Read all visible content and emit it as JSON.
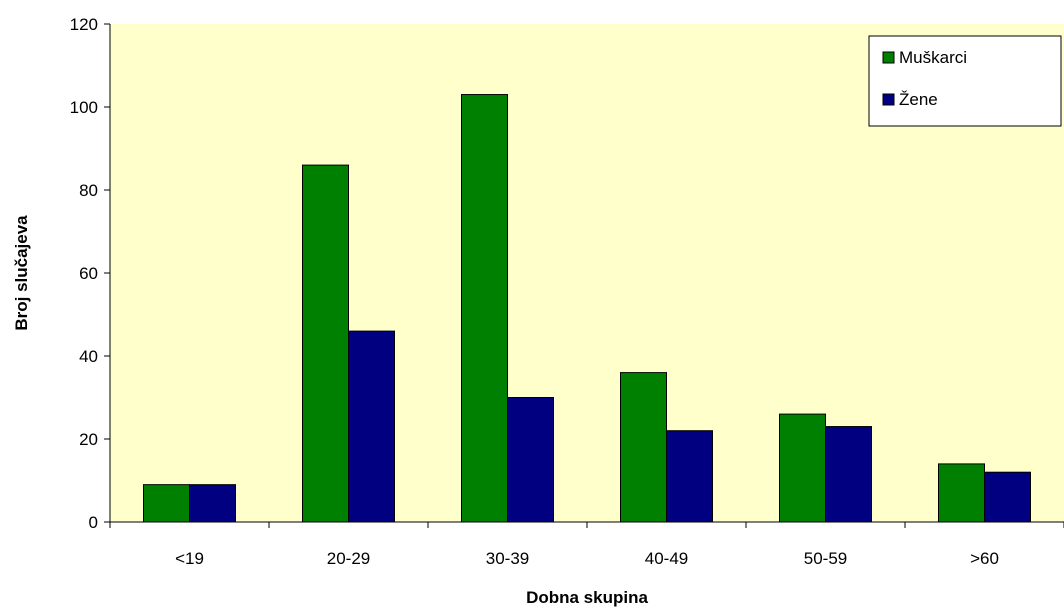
{
  "chart_data": {
    "type": "bar",
    "title": "",
    "xlabel": "Dobna skupina",
    "ylabel": "Broj slučajeva",
    "categories": [
      "<19",
      "20-29",
      "30-39",
      "40-49",
      "50-59",
      ">60"
    ],
    "series": [
      {
        "name": "Muškarci",
        "values": [
          9,
          86,
          103,
          36,
          26,
          14
        ],
        "color": "#008000"
      },
      {
        "name": "Žene",
        "values": [
          9,
          46,
          30,
          22,
          23,
          12
        ],
        "color": "#000080"
      }
    ],
    "ylim": [
      0,
      120
    ],
    "yticks": [
      0,
      20,
      40,
      60,
      80,
      100,
      120
    ],
    "grid": false,
    "plot_background": "#FFFFCC",
    "legend_position": "top-right"
  }
}
